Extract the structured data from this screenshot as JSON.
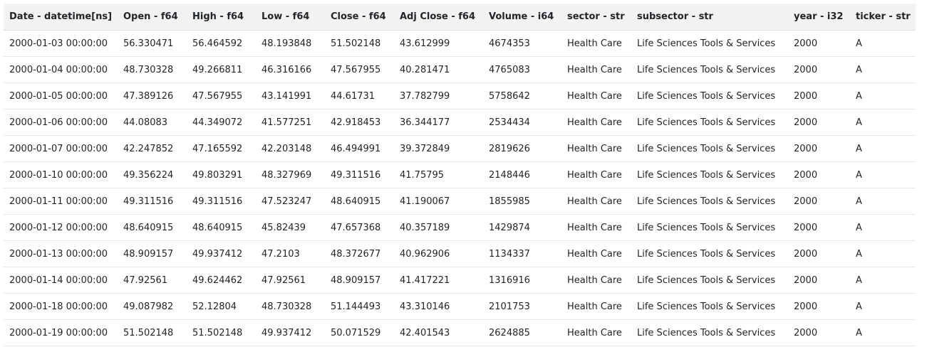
{
  "table": {
    "columns": [
      "Date - datetime[ns]",
      "Open - f64",
      "High - f64",
      "Low - f64",
      "Close - f64",
      "Adj Close - f64",
      "Volume - i64",
      "sector - str",
      "subsector - str",
      "year - i32",
      "ticker - str"
    ],
    "rows": [
      [
        "2000-01-03 00:00:00",
        "56.330471",
        "56.464592",
        "48.193848",
        "51.502148",
        "43.612999",
        "4674353",
        "Health Care",
        "Life Sciences Tools & Services",
        "2000",
        "A"
      ],
      [
        "2000-01-04 00:00:00",
        "48.730328",
        "49.266811",
        "46.316166",
        "47.567955",
        "40.281471",
        "4765083",
        "Health Care",
        "Life Sciences Tools & Services",
        "2000",
        "A"
      ],
      [
        "2000-01-05 00:00:00",
        "47.389126",
        "47.567955",
        "43.141991",
        "44.61731",
        "37.782799",
        "5758642",
        "Health Care",
        "Life Sciences Tools & Services",
        "2000",
        "A"
      ],
      [
        "2000-01-06 00:00:00",
        "44.08083",
        "44.349072",
        "41.577251",
        "42.918453",
        "36.344177",
        "2534434",
        "Health Care",
        "Life Sciences Tools & Services",
        "2000",
        "A"
      ],
      [
        "2000-01-07 00:00:00",
        "42.247852",
        "47.165592",
        "42.203148",
        "46.494991",
        "39.372849",
        "2819626",
        "Health Care",
        "Life Sciences Tools & Services",
        "2000",
        "A"
      ],
      [
        "2000-01-10 00:00:00",
        "49.356224",
        "49.803291",
        "48.327969",
        "49.311516",
        "41.75795",
        "2148446",
        "Health Care",
        "Life Sciences Tools & Services",
        "2000",
        "A"
      ],
      [
        "2000-01-11 00:00:00",
        "49.311516",
        "49.311516",
        "47.523247",
        "48.640915",
        "41.190067",
        "1855985",
        "Health Care",
        "Life Sciences Tools & Services",
        "2000",
        "A"
      ],
      [
        "2000-01-12 00:00:00",
        "48.640915",
        "48.640915",
        "45.82439",
        "47.657368",
        "40.357189",
        "1429874",
        "Health Care",
        "Life Sciences Tools & Services",
        "2000",
        "A"
      ],
      [
        "2000-01-13 00:00:00",
        "48.909157",
        "49.937412",
        "47.2103",
        "48.372677",
        "40.962906",
        "1134337",
        "Health Care",
        "Life Sciences Tools & Services",
        "2000",
        "A"
      ],
      [
        "2000-01-14 00:00:00",
        "47.92561",
        "49.624462",
        "47.92561",
        "48.909157",
        "41.417221",
        "1316916",
        "Health Care",
        "Life Sciences Tools & Services",
        "2000",
        "A"
      ],
      [
        "2000-01-18 00:00:00",
        "49.087982",
        "52.12804",
        "48.730328",
        "51.144493",
        "43.310146",
        "2101753",
        "Health Care",
        "Life Sciences Tools & Services",
        "2000",
        "A"
      ],
      [
        "2000-01-19 00:00:00",
        "51.502148",
        "51.502148",
        "49.937412",
        "50.071529",
        "42.401543",
        "2624885",
        "Health Care",
        "Life Sciences Tools & Services",
        "2000",
        "A"
      ]
    ]
  }
}
